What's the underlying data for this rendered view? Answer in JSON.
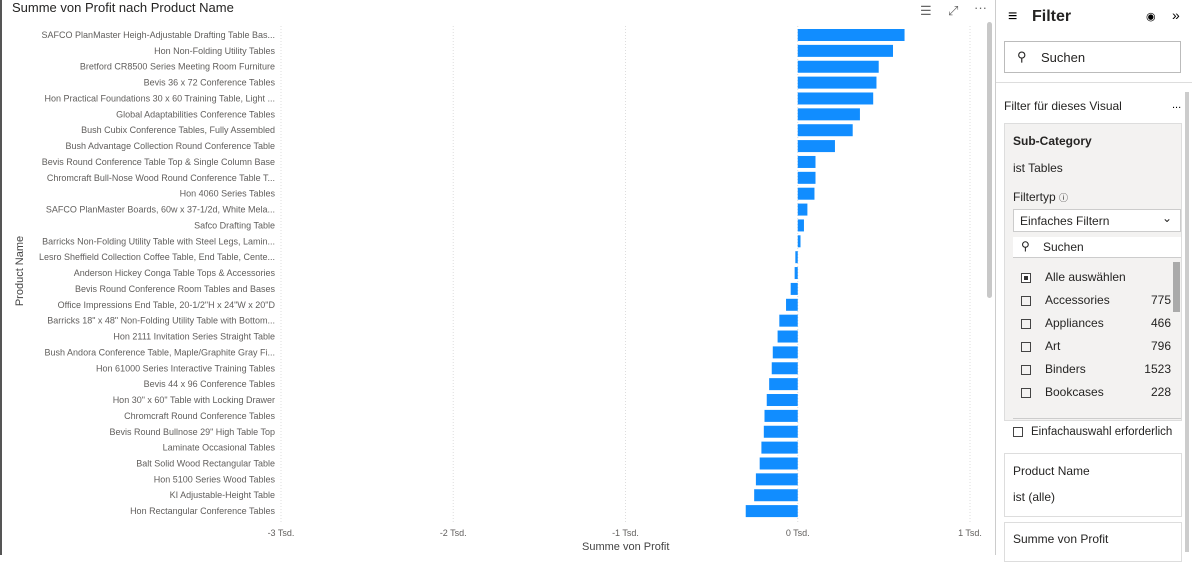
{
  "visual": {
    "title": "Summe von Profit nach Product Name",
    "icons": [
      "filter-icon",
      "focus-mode-icon",
      "more-options-icon"
    ]
  },
  "chart_data": {
    "type": "bar",
    "orientation": "horizontal",
    "title": "Summe von Profit nach Product Name",
    "xlabel": "Summe von Profit",
    "ylabel": "Product Name",
    "xlim": [
      -3000,
      1000
    ],
    "xticks": [
      "-3 Tsd.",
      "-2 Tsd.",
      "-1 Tsd.",
      "0 Tsd.",
      "1 Tsd."
    ],
    "xtick_values": [
      -3000,
      -2000,
      -1000,
      0,
      1000
    ],
    "grid": true,
    "color": "#118DFF",
    "categories": [
      "SAFCO PlanMaster Heigh-Adjustable Drafting Table Bas...",
      "Hon Non-Folding Utility Tables",
      "Bretford CR8500 Series Meeting Room Furniture",
      "Bevis 36 x 72 Conference Tables",
      "Hon Practical Foundations 30 x 60 Training Table, Light ...",
      "Global Adaptabilities Conference Tables",
      "Bush Cubix Conference Tables, Fully Assembled",
      "Bush Advantage Collection Round Conference Table",
      "Bevis Round Conference Table Top & Single Column Base",
      "Chromcraft Bull-Nose Wood Round Conference Table T...",
      "Hon 4060 Series Tables",
      "SAFCO PlanMaster Boards, 60w x 37-1/2d, White Mela...",
      "Safco Drafting Table",
      "Barricks Non-Folding Utility Table with Steel Legs, Lamin...",
      "Lesro Sheffield Collection Coffee Table, End Table, Cente...",
      "Anderson Hickey Conga Table Tops & Accessories",
      "Bevis Round Conference Room Tables and Bases",
      "Office Impressions End Table, 20-1/2\"H x 24\"W x 20\"D",
      "Barricks 18\" x 48\" Non-Folding Utility Table with Bottom...",
      "Hon 2111 Invitation Series Straight Table",
      "Bush Andora Conference Table, Maple/Graphite Gray Fi...",
      "Hon 61000 Series Interactive Training Tables",
      "Bevis 44 x 96 Conference Tables",
      "Hon 30\" x 60\" Table with Locking Drawer",
      "Chromcraft Round Conference Tables",
      "Bevis Round Bullnose 29\" High Table Top",
      "Laminate Occasional Tables",
      "Balt Solid Wood Rectangular Table",
      "Hon 5100 Series Wood Tables",
      "KI Adjustable-Height Table",
      "Hon Rectangular Conference Tables"
    ],
    "values": [
      620,
      553,
      470,
      457,
      438,
      361,
      319,
      216,
      103,
      103,
      97,
      56,
      36,
      16,
      -14,
      -18,
      -41,
      -68,
      -107,
      -117,
      -145,
      -151,
      -166,
      -180,
      -193,
      -197,
      -211,
      -221,
      -243,
      -253,
      -302
    ]
  },
  "filter_pane": {
    "title": "Filter",
    "search_placeholder": "Suchen",
    "section": "Filter für dieses Visual",
    "more": "...",
    "subcategory": {
      "title": "Sub-Category",
      "summary": "ist Tables",
      "filtertype_label": "Filtertyp",
      "filtertype_value": "Einfaches Filtern",
      "search_placeholder": "Suchen",
      "select_all": "Alle auswählen",
      "items": [
        {
          "label": "Accessories",
          "count": "775"
        },
        {
          "label": "Appliances",
          "count": "466"
        },
        {
          "label": "Art",
          "count": "796"
        },
        {
          "label": "Binders",
          "count": "1523"
        },
        {
          "label": "Bookcases",
          "count": "228"
        }
      ],
      "single_select": "Einfachauswahl erforderlich"
    },
    "product_name": {
      "title": "Product Name",
      "summary": "ist (alle)"
    },
    "profit": {
      "title": "Summe von Profit"
    }
  }
}
